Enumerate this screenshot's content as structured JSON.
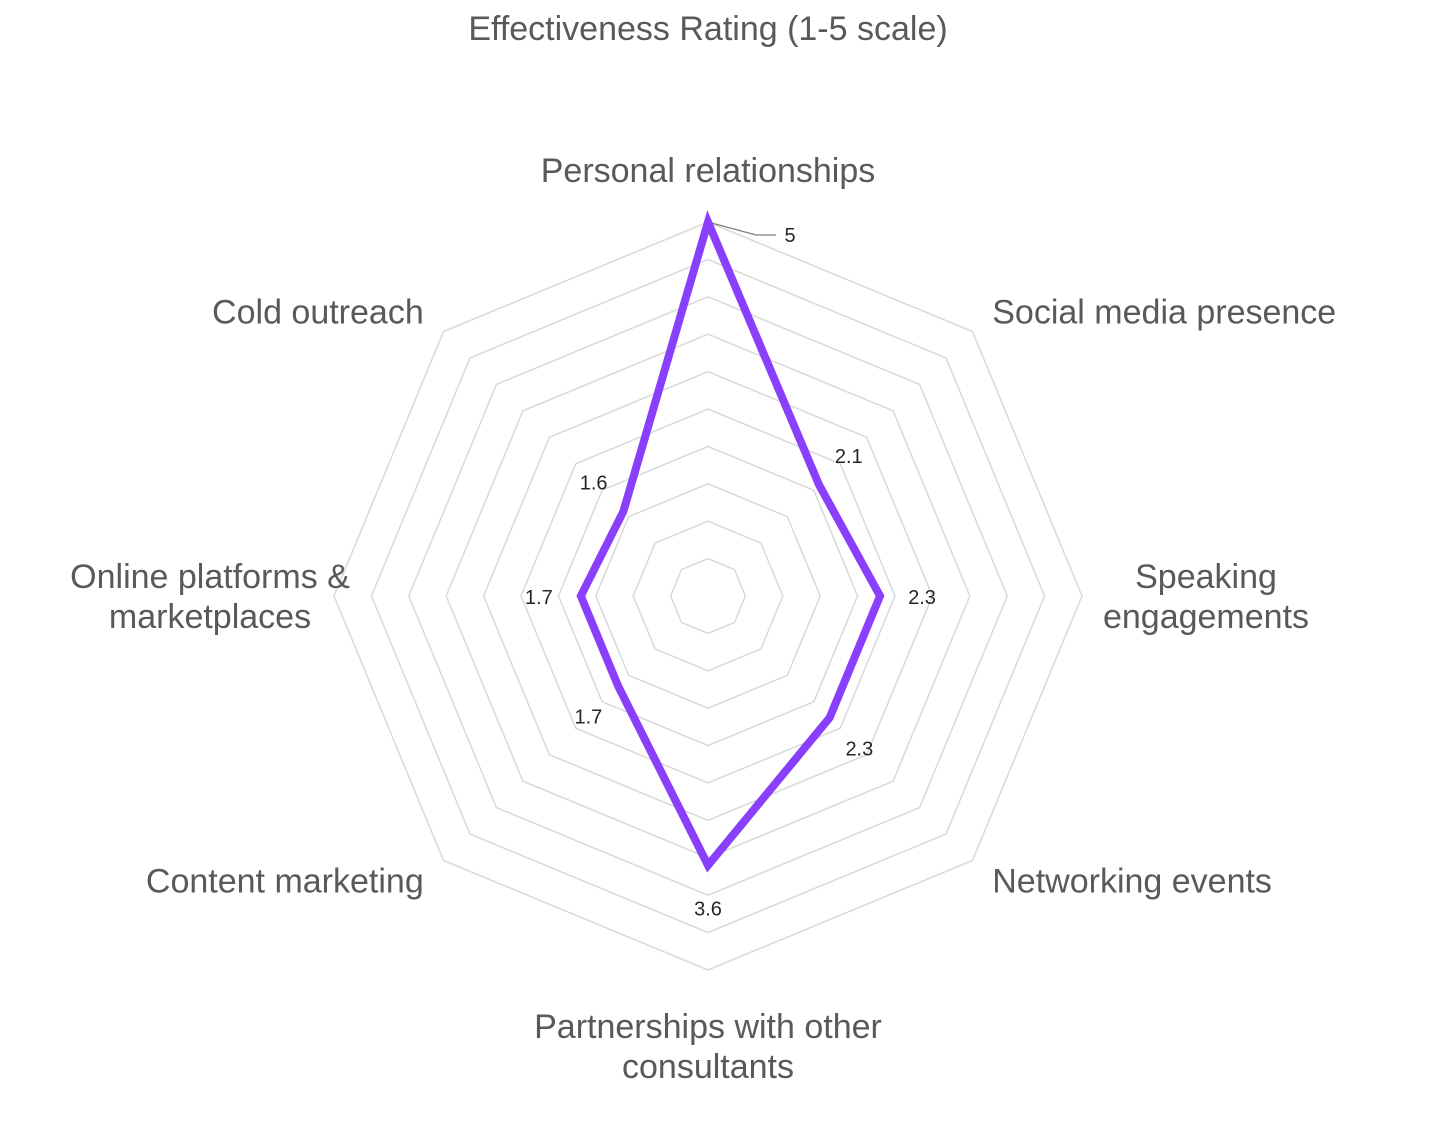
{
  "chart_data": {
    "type": "radar",
    "title": "Effectiveness Rating (1-5 scale)",
    "categories": [
      [
        "Personal relationships"
      ],
      [
        "Social media presence"
      ],
      [
        "Speaking",
        "engagements"
      ],
      [
        "Networking events"
      ],
      [
        "Partnerships with other",
        "consultants"
      ],
      [
        "Content marketing"
      ],
      [
        "Online platforms &",
        "marketplaces"
      ],
      [
        "Cold outreach"
      ]
    ],
    "series": [
      {
        "values": [
          5,
          2.1,
          2.3,
          2.3,
          3.6,
          1.7,
          1.7,
          1.6
        ]
      }
    ],
    "data_labels": [
      "5",
      "2.1",
      "2.3",
      "2.3",
      "3.6",
      "1.7",
      "1.7",
      "1.6"
    ],
    "rlim": [
      0,
      5
    ],
    "grid": true,
    "legend": "none",
    "colors": {
      "series": "#8a3ffc",
      "grid": "#d9d9d9",
      "text": "#595959"
    }
  }
}
